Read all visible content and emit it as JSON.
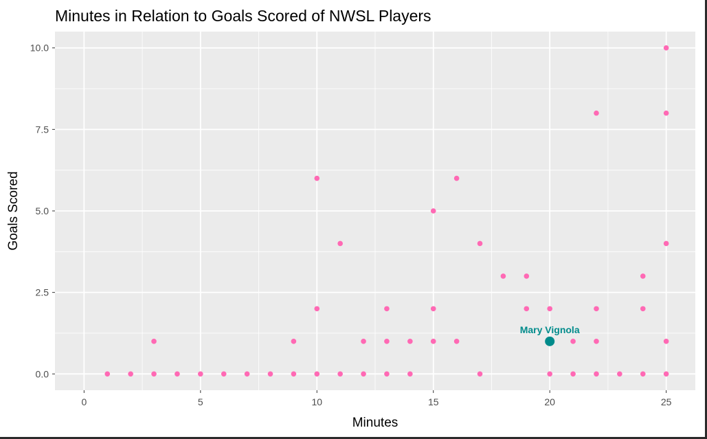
{
  "chart_data": {
    "type": "scatter",
    "title": "Minutes in Relation to Goals Scored of NWSL Players",
    "xlabel": "Minutes",
    "ylabel": "Goals Scored",
    "xlim": [
      -1.25,
      26.25
    ],
    "ylim": [
      -0.5,
      10.5
    ],
    "x_ticks": [
      0,
      5,
      10,
      15,
      20,
      25
    ],
    "x_tick_labels": [
      "0",
      "5",
      "10",
      "15",
      "20",
      "25"
    ],
    "y_ticks": [
      0,
      2.5,
      5,
      7.5,
      10
    ],
    "y_tick_labels": [
      "0.0",
      "2.5",
      "5.0",
      "7.5",
      "10.0"
    ],
    "grid": true,
    "legend": "none",
    "point_color": "#FF69B4",
    "highlight_color": "#008B8B",
    "panel_background": "#EBEBEB",
    "points": [
      {
        "x": 1,
        "y": 0
      },
      {
        "x": 2,
        "y": 0
      },
      {
        "x": 3,
        "y": 0
      },
      {
        "x": 3,
        "y": 1
      },
      {
        "x": 4,
        "y": 0
      },
      {
        "x": 5,
        "y": 0
      },
      {
        "x": 6,
        "y": 0
      },
      {
        "x": 7,
        "y": 0
      },
      {
        "x": 8,
        "y": 0
      },
      {
        "x": 9,
        "y": 0
      },
      {
        "x": 9,
        "y": 1
      },
      {
        "x": 10,
        "y": 0
      },
      {
        "x": 10,
        "y": 2
      },
      {
        "x": 10,
        "y": 6
      },
      {
        "x": 11,
        "y": 0
      },
      {
        "x": 11,
        "y": 4
      },
      {
        "x": 12,
        "y": 0
      },
      {
        "x": 12,
        "y": 1
      },
      {
        "x": 13,
        "y": 0
      },
      {
        "x": 13,
        "y": 1
      },
      {
        "x": 13,
        "y": 2
      },
      {
        "x": 14,
        "y": 0
      },
      {
        "x": 14,
        "y": 1
      },
      {
        "x": 15,
        "y": 1
      },
      {
        "x": 15,
        "y": 2
      },
      {
        "x": 15,
        "y": 5
      },
      {
        "x": 16,
        "y": 1
      },
      {
        "x": 16,
        "y": 6
      },
      {
        "x": 17,
        "y": 0
      },
      {
        "x": 17,
        "y": 4
      },
      {
        "x": 18,
        "y": 3
      },
      {
        "x": 19,
        "y": 2
      },
      {
        "x": 19,
        "y": 3
      },
      {
        "x": 20,
        "y": 0
      },
      {
        "x": 20,
        "y": 2
      },
      {
        "x": 21,
        "y": 0
      },
      {
        "x": 21,
        "y": 1
      },
      {
        "x": 22,
        "y": 0
      },
      {
        "x": 22,
        "y": 1
      },
      {
        "x": 22,
        "y": 2
      },
      {
        "x": 22,
        "y": 8
      },
      {
        "x": 23,
        "y": 0
      },
      {
        "x": 24,
        "y": 0
      },
      {
        "x": 24,
        "y": 2
      },
      {
        "x": 24,
        "y": 3
      },
      {
        "x": 25,
        "y": 0
      },
      {
        "x": 25,
        "y": 1
      },
      {
        "x": 25,
        "y": 4
      },
      {
        "x": 25,
        "y": 8
      },
      {
        "x": 25,
        "y": 10
      }
    ],
    "highlight": {
      "label": "Mary Vignola",
      "x": 20,
      "y": 1
    }
  }
}
